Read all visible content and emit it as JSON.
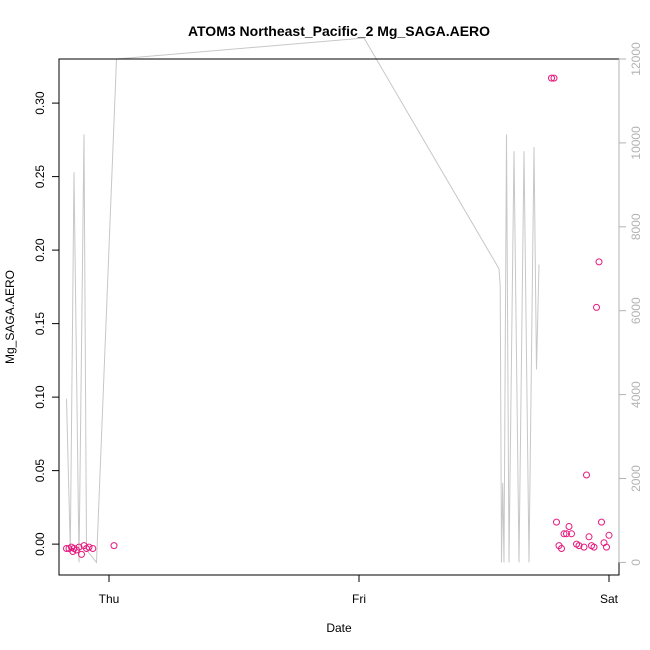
{
  "chart_data": {
    "type": "scatter",
    "title": "ATOM3 Northeast_Pacific_2 Mg_SAGA.AERO",
    "xlabel": "Date",
    "ylabel": "Mg_SAGA.AERO",
    "x_ticks": [
      "Thu",
      "Fri",
      "Sat"
    ],
    "x_tick_values": [
      0,
      1,
      2
    ],
    "x_unit": "days after Thu 00:00",
    "xlim": [
      -0.2,
      2.04
    ],
    "ylim": [
      -0.021,
      0.33
    ],
    "y_ticks": [
      0.0,
      0.05,
      0.1,
      0.15,
      0.2,
      0.25,
      0.3
    ],
    "y_tick_labels": [
      "0.00",
      "0.05",
      "0.10",
      "0.15",
      "0.20",
      "0.25",
      "0.30"
    ],
    "y2lim": [
      -300,
      12000
    ],
    "y2_ticks": [
      0,
      2000,
      4000,
      6000,
      8000,
      10000,
      12000
    ],
    "y2_tick_labels": [
      "0",
      "2000",
      "4000",
      "6000",
      "8000",
      "10000",
      "12000"
    ],
    "grid": false,
    "series": [
      {
        "kind": "points",
        "color": "#e6197d",
        "x": [
          -0.17,
          -0.16,
          -0.15,
          -0.145,
          -0.14,
          -0.13,
          -0.12,
          -0.11,
          -0.1,
          -0.09,
          -0.08,
          -0.065,
          0.02,
          1.77,
          1.78,
          1.79,
          1.8,
          1.81,
          1.82,
          1.83,
          1.84,
          1.85,
          1.87,
          1.88,
          1.9,
          1.91,
          1.92,
          1.93,
          1.94,
          1.95,
          1.96,
          1.97,
          1.98,
          1.99,
          2.0
        ],
        "y": [
          -0.003,
          -0.003,
          -0.002,
          -0.005,
          -0.003,
          -0.004,
          -0.002,
          -0.007,
          -0.001,
          -0.003,
          -0.002,
          -0.003,
          -0.001,
          0.317,
          0.317,
          0.015,
          -0.001,
          -0.003,
          0.007,
          0.007,
          0.012,
          0.007,
          0.0,
          -0.001,
          -0.002,
          0.047,
          0.005,
          -0.001,
          -0.002,
          0.161,
          0.192,
          0.015,
          0.001,
          -0.002,
          0.006
        ]
      },
      {
        "kind": "line",
        "color": "#c7c7c7",
        "x": [
          -0.17,
          -0.155,
          -0.14,
          -0.12,
          -0.1,
          -0.09,
          -0.05,
          0.03,
          1.02,
          1.56,
          1.565,
          1.57,
          1.575,
          1.58,
          1.59,
          1.6,
          1.62,
          1.64,
          1.66,
          1.68,
          1.7,
          1.71,
          1.72
        ],
        "y": [
          3900,
          300,
          9300,
          0,
          10200,
          300,
          0,
          12000,
          12500,
          7000,
          6600,
          0,
          1900,
          0,
          10200,
          0,
          9800,
          0,
          9800,
          0,
          9900,
          4600,
          7100
        ]
      }
    ]
  }
}
